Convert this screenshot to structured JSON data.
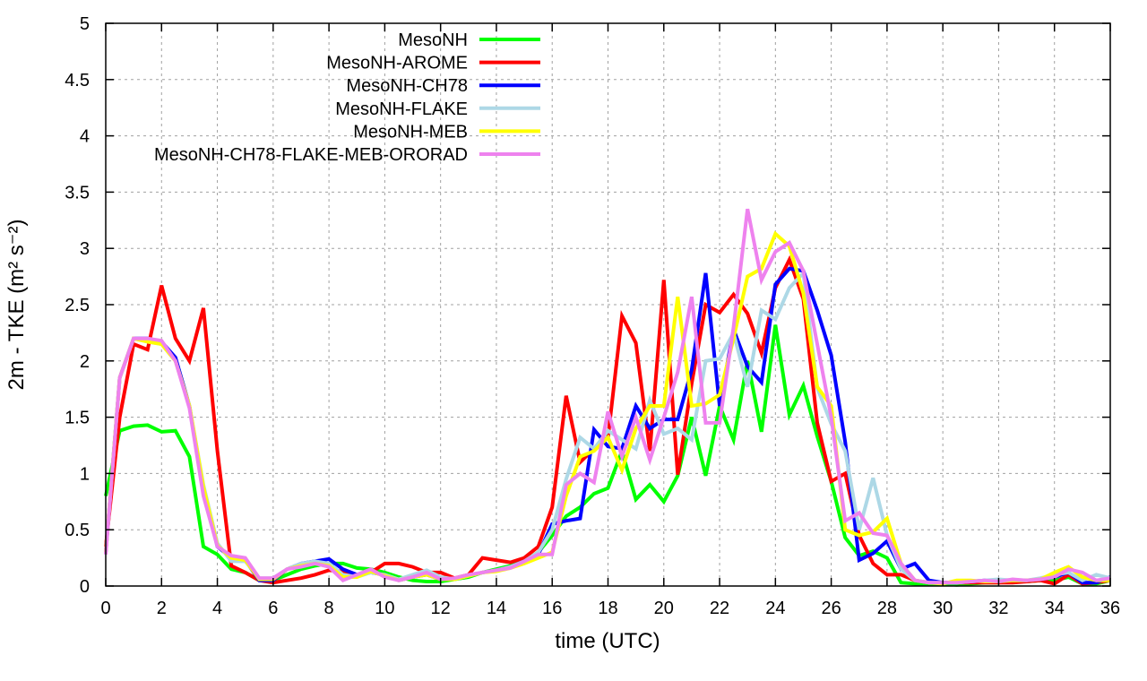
{
  "chart_data": {
    "type": "line",
    "title": "",
    "xlabel": "time (UTC)",
    "ylabel": "2m - TKE (m² s⁻²)",
    "xlim": [
      0,
      36
    ],
    "ylim": [
      0,
      5
    ],
    "grid": true,
    "legend_placement": "top-left",
    "x_ticks": [
      "0",
      "2",
      "4",
      "6",
      "8",
      "10",
      "12",
      "14",
      "16",
      "18",
      "20",
      "22",
      "24",
      "26",
      "28",
      "30",
      "32",
      "34",
      "36"
    ],
    "y_ticks": [
      "0",
      "0.5",
      "1",
      "1.5",
      "2",
      "2.5",
      "3",
      "3.5",
      "4",
      "4.5",
      "5"
    ],
    "x_step": 0.5,
    "series": [
      {
        "name": "MesoNH",
        "color": "#00ff00",
        "values": [
          0.8,
          1.38,
          1.42,
          1.43,
          1.37,
          1.38,
          1.15,
          0.35,
          0.28,
          0.15,
          0.12,
          0.05,
          0.05,
          0.1,
          0.15,
          0.18,
          0.2,
          0.2,
          0.16,
          0.15,
          0.12,
          0.08,
          0.05,
          0.04,
          0.04,
          0.06,
          0.08,
          0.12,
          0.15,
          0.18,
          0.22,
          0.3,
          0.45,
          0.62,
          0.7,
          0.82,
          0.87,
          1.2,
          0.77,
          0.9,
          0.75,
          0.98,
          1.5,
          0.98,
          1.6,
          1.3,
          2.0,
          1.37,
          2.32,
          1.52,
          1.78,
          1.33,
          0.93,
          0.43,
          0.27,
          0.31,
          0.25,
          0.03,
          0.02,
          0.02,
          0.02,
          0.01,
          0.02,
          0.03,
          0.03,
          0.04,
          0.04,
          0.05,
          0.05,
          0.08,
          0.02,
          0.02,
          0.05
        ]
      },
      {
        "name": "MesoNH-AROME",
        "color": "#ff0000",
        "values": [
          0.35,
          1.5,
          2.15,
          2.1,
          2.67,
          2.2,
          2.0,
          2.47,
          1.2,
          0.18,
          0.12,
          0.05,
          0.03,
          0.05,
          0.07,
          0.1,
          0.14,
          0.13,
          0.1,
          0.12,
          0.2,
          0.2,
          0.17,
          0.12,
          0.12,
          0.07,
          0.1,
          0.25,
          0.23,
          0.21,
          0.25,
          0.35,
          0.7,
          1.69,
          1.1,
          1.22,
          1.32,
          2.4,
          2.16,
          1.2,
          2.72,
          0.99,
          1.8,
          2.5,
          2.43,
          2.59,
          2.42,
          2.07,
          2.65,
          2.9,
          2.55,
          1.45,
          0.93,
          1.0,
          0.45,
          0.2,
          0.1,
          0.1,
          0.05,
          0.03,
          0.03,
          0.03,
          0.03,
          0.03,
          0.03,
          0.03,
          0.04,
          0.05,
          0.02,
          0.1,
          0.02,
          0.03,
          0.05
        ]
      },
      {
        "name": "MesoNH-CH78",
        "color": "#0000ff",
        "values": [
          0.3,
          1.85,
          2.2,
          2.2,
          2.17,
          2.03,
          1.6,
          0.85,
          0.35,
          0.25,
          0.23,
          0.05,
          0.05,
          0.15,
          0.2,
          0.22,
          0.24,
          0.15,
          0.1,
          0.12,
          0.1,
          0.05,
          0.08,
          0.1,
          0.06,
          0.06,
          0.09,
          0.12,
          0.14,
          0.17,
          0.22,
          0.28,
          0.55,
          0.58,
          0.6,
          1.39,
          1.24,
          1.22,
          1.6,
          1.4,
          1.48,
          1.48,
          1.92,
          2.78,
          1.6,
          2.28,
          1.95,
          1.81,
          2.68,
          2.82,
          2.8,
          2.45,
          2.05,
          1.28,
          0.23,
          0.29,
          0.4,
          0.15,
          0.2,
          0.05,
          0.03,
          0.03,
          0.04,
          0.05,
          0.04,
          0.05,
          0.05,
          0.06,
          0.08,
          0.12,
          0.03,
          0.03,
          0.08
        ]
      },
      {
        "name": "MesoNH-FLAKE",
        "color": "#add8e6",
        "values": [
          0.3,
          1.85,
          2.2,
          2.17,
          2.15,
          2.0,
          1.6,
          0.9,
          0.38,
          0.22,
          0.22,
          0.07,
          0.07,
          0.15,
          0.2,
          0.22,
          0.2,
          0.1,
          0.08,
          0.12,
          0.1,
          0.06,
          0.1,
          0.14,
          0.08,
          0.06,
          0.09,
          0.12,
          0.14,
          0.17,
          0.22,
          0.3,
          0.5,
          0.95,
          1.32,
          1.22,
          1.38,
          1.3,
          1.22,
          1.65,
          1.35,
          1.4,
          1.3,
          2.0,
          2.02,
          2.25,
          1.77,
          2.45,
          2.37,
          2.65,
          2.78,
          1.76,
          1.44,
          1.2,
          0.5,
          0.96,
          0.45,
          0.15,
          0.05,
          0.03,
          0.03,
          0.03,
          0.04,
          0.05,
          0.06,
          0.05,
          0.05,
          0.07,
          0.1,
          0.12,
          0.05,
          0.1,
          0.07
        ]
      },
      {
        "name": "MesoNH-MEB",
        "color": "#ffff00",
        "values": [
          0.3,
          1.85,
          2.2,
          2.17,
          2.15,
          2.0,
          1.6,
          0.88,
          0.36,
          0.25,
          0.23,
          0.06,
          0.06,
          0.15,
          0.18,
          0.2,
          0.18,
          0.08,
          0.08,
          0.13,
          0.09,
          0.05,
          0.08,
          0.1,
          0.06,
          0.06,
          0.09,
          0.12,
          0.13,
          0.16,
          0.2,
          0.25,
          0.3,
          0.8,
          1.15,
          1.2,
          1.32,
          1.03,
          1.4,
          1.6,
          1.6,
          2.57,
          1.6,
          1.62,
          1.7,
          2.2,
          2.75,
          2.82,
          3.13,
          3.02,
          2.6,
          1.77,
          1.6,
          0.5,
          0.45,
          0.48,
          0.6,
          0.2,
          0.05,
          0.03,
          0.02,
          0.05,
          0.05,
          0.04,
          0.04,
          0.05,
          0.05,
          0.06,
          0.12,
          0.17,
          0.08,
          0.05,
          0.05
        ]
      },
      {
        "name": "MesoNH-CH78-FLAKE-MEB-ORORAD",
        "color": "#ee82ee",
        "values": [
          0.28,
          1.85,
          2.2,
          2.2,
          2.18,
          2.0,
          1.58,
          0.8,
          0.35,
          0.27,
          0.25,
          0.07,
          0.07,
          0.15,
          0.17,
          0.2,
          0.17,
          0.05,
          0.1,
          0.15,
          0.08,
          0.05,
          0.08,
          0.12,
          0.06,
          0.07,
          0.1,
          0.12,
          0.14,
          0.16,
          0.22,
          0.28,
          0.28,
          0.9,
          1.0,
          0.92,
          1.55,
          1.15,
          1.5,
          1.12,
          1.5,
          1.9,
          2.57,
          1.45,
          1.45,
          2.3,
          3.35,
          2.72,
          2.97,
          3.05,
          2.8,
          2.15,
          1.5,
          0.58,
          0.65,
          0.47,
          0.45,
          0.2,
          0.05,
          0.03,
          0.03,
          0.03,
          0.04,
          0.05,
          0.04,
          0.06,
          0.05,
          0.06,
          0.08,
          0.15,
          0.12,
          0.05,
          0.07
        ]
      }
    ]
  }
}
